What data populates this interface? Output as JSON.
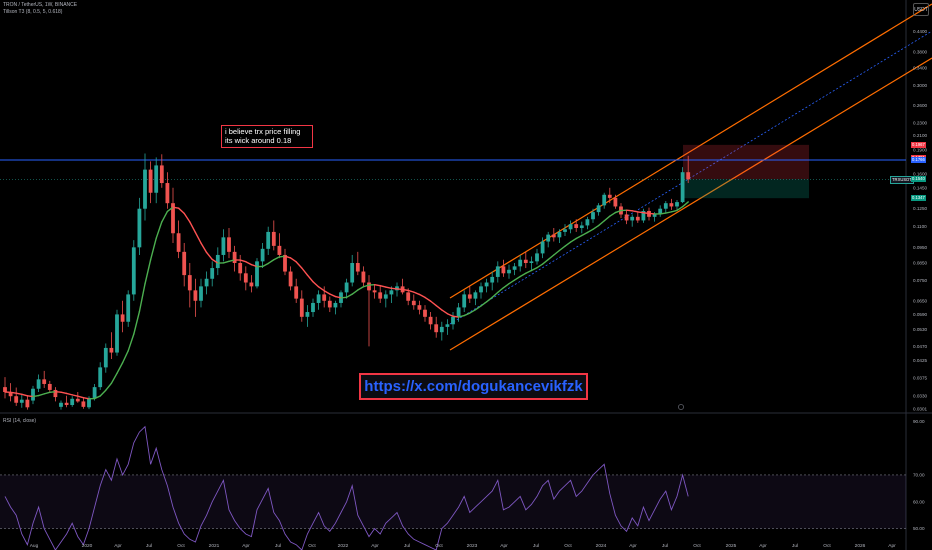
{
  "header": {
    "symbol_line": "TRON / TetherUS, 1W, BINANCE",
    "indicator_line": "Tillson T3 (8, 0.5, 5, 0.618)"
  },
  "currency_button": "USDT",
  "rsi_header": "RSI (14, close)",
  "annotation": {
    "line1": "i believe trx price filling",
    "line2": "its wick around 0.18"
  },
  "link_text": "https://x.com/dogukancevikfzk",
  "symbol_badge": "TRXUSDT",
  "price_badges": [
    {
      "label": "0.1967",
      "color": "#f23645",
      "price": 0.1967
    },
    {
      "label": "0.1791",
      "color": "#f23645",
      "price": 0.1791
    },
    {
      "label": "0.1766",
      "color": "#2962ff",
      "price": 0.1766
    },
    {
      "label": "0.1540",
      "color": "#089981",
      "price": 0.154
    },
    {
      "label": "0.1347",
      "color": "#089981",
      "price": 0.1347
    }
  ],
  "colors": {
    "up": "#26a69a",
    "down": "#ef5350",
    "channel": "#ff6d00",
    "midline": "#2962ff",
    "hline": "#2962ff",
    "rsi": "#7e57c2",
    "t3_up": "#4caf50",
    "t3_down": "#ff5252"
  },
  "chart_data": [
    {
      "type": "candlestick",
      "title": "TRON / TetherUS, 1W, BINANCE",
      "y_scale": "log",
      "y_ticks": [
        0.44,
        0.38,
        0.34,
        0.3,
        0.26,
        0.23,
        0.21,
        0.19,
        0.16,
        0.145,
        0.125,
        0.11,
        0.095,
        0.085,
        0.075,
        0.065,
        0.059,
        0.053,
        0.047,
        0.0425,
        0.0375,
        0.033,
        0.0301
      ],
      "x_ticks": [
        "Aug",
        "2020",
        "Apr",
        "Jul",
        "Oct",
        "2021",
        "Apr",
        "Jul",
        "Oct",
        "2022",
        "Apr",
        "Jul",
        "Oct",
        "2023",
        "Apr",
        "Jul",
        "Oct",
        "2024",
        "Apr",
        "Jul",
        "Oct",
        "2025",
        "Apr",
        "Jul",
        "Oct",
        "2026",
        "Apr"
      ],
      "series": [
        {
          "ohlc": [
            [
              0.0352,
              0.0378,
              0.0325,
              0.034
            ],
            [
              0.034,
              0.0362,
              0.0318,
              0.033
            ],
            [
              0.033,
              0.0351,
              0.0308,
              0.0315
            ],
            [
              0.0315,
              0.0336,
              0.0304,
              0.0322
            ],
            [
              0.0322,
              0.033,
              0.03,
              0.0305
            ],
            [
              0.032,
              0.0355,
              0.0312,
              0.0348
            ],
            [
              0.0348,
              0.0385,
              0.034,
              0.0372
            ],
            [
              0.0372,
              0.0395,
              0.035,
              0.036
            ],
            [
              0.036,
              0.0368,
              0.0338,
              0.0345
            ],
            [
              0.0345,
              0.0352,
              0.0318,
              0.0328
            ],
            [
              0.0306,
              0.032,
              0.03,
              0.0315
            ],
            [
              0.0315,
              0.0331,
              0.0305,
              0.031
            ],
            [
              0.031,
              0.033,
              0.0306,
              0.0324
            ],
            [
              0.0324,
              0.034,
              0.0315,
              0.0318
            ],
            [
              0.0318,
              0.0325,
              0.0302,
              0.0306
            ],
            [
              0.0305,
              0.033,
              0.0301,
              0.0326
            ],
            [
              0.0326,
              0.036,
              0.032,
              0.0352
            ],
            [
              0.0352,
              0.042,
              0.0345,
              0.0405
            ],
            [
              0.0405,
              0.048,
              0.039,
              0.0465
            ],
            [
              0.0465,
              0.052,
              0.043,
              0.045
            ],
            [
              0.045,
              0.061,
              0.044,
              0.059
            ],
            [
              0.059,
              0.065,
              0.052,
              0.056
            ],
            [
              0.056,
              0.07,
              0.054,
              0.068
            ],
            [
              0.068,
              0.1,
              0.065,
              0.095
            ],
            [
              0.095,
              0.135,
              0.09,
              0.125
            ],
            [
              0.125,
              0.185,
              0.115,
              0.165
            ],
            [
              0.165,
              0.175,
              0.13,
              0.14
            ],
            [
              0.14,
              0.18,
              0.13,
              0.17
            ],
            [
              0.17,
              0.184,
              0.145,
              0.15
            ],
            [
              0.15,
              0.162,
              0.125,
              0.13
            ],
            [
              0.13,
              0.145,
              0.098,
              0.105
            ],
            [
              0.105,
              0.115,
              0.088,
              0.092
            ],
            [
              0.092,
              0.098,
              0.072,
              0.078
            ],
            [
              0.078,
              0.085,
              0.062,
              0.07
            ],
            [
              0.07,
              0.076,
              0.058,
              0.065
            ],
            [
              0.065,
              0.076,
              0.062,
              0.072
            ],
            [
              0.072,
              0.08,
              0.068,
              0.076
            ],
            [
              0.076,
              0.086,
              0.072,
              0.082
            ],
            [
              0.082,
              0.095,
              0.078,
              0.09
            ],
            [
              0.09,
              0.108,
              0.086,
              0.102
            ],
            [
              0.102,
              0.109,
              0.088,
              0.092
            ],
            [
              0.092,
              0.096,
              0.08,
              0.085
            ],
            [
              0.085,
              0.09,
              0.075,
              0.079
            ],
            [
              0.079,
              0.083,
              0.07,
              0.074
            ],
            [
              0.074,
              0.078,
              0.069,
              0.072
            ],
            [
              0.072,
              0.088,
              0.071,
              0.086
            ],
            [
              0.086,
              0.098,
              0.082,
              0.094
            ],
            [
              0.094,
              0.11,
              0.09,
              0.106
            ],
            [
              0.106,
              0.115,
              0.093,
              0.096
            ],
            [
              0.096,
              0.105,
              0.088,
              0.09
            ],
            [
              0.09,
              0.094,
              0.078,
              0.08
            ],
            [
              0.08,
              0.083,
              0.07,
              0.072
            ],
            [
              0.072,
              0.076,
              0.064,
              0.066
            ],
            [
              0.066,
              0.07,
              0.056,
              0.058
            ],
            [
              0.058,
              0.063,
              0.054,
              0.06
            ],
            [
              0.06,
              0.066,
              0.058,
              0.064
            ],
            [
              0.064,
              0.07,
              0.061,
              0.068
            ],
            [
              0.068,
              0.072,
              0.062,
              0.065
            ],
            [
              0.065,
              0.067,
              0.06,
              0.062
            ],
            [
              0.062,
              0.065,
              0.059,
              0.064
            ],
            [
              0.064,
              0.07,
              0.062,
              0.069
            ],
            [
              0.069,
              0.076,
              0.066,
              0.074
            ],
            [
              0.074,
              0.09,
              0.072,
              0.085
            ],
            [
              0.085,
              0.092,
              0.078,
              0.08
            ],
            [
              0.08,
              0.083,
              0.072,
              0.074
            ],
            [
              0.074,
              0.078,
              0.047,
              0.07
            ],
            [
              0.07,
              0.073,
              0.066,
              0.069
            ],
            [
              0.069,
              0.072,
              0.064,
              0.066
            ],
            [
              0.066,
              0.07,
              0.062,
              0.068
            ],
            [
              0.068,
              0.072,
              0.064,
              0.07
            ],
            [
              0.07,
              0.074,
              0.067,
              0.072
            ],
            [
              0.072,
              0.076,
              0.068,
              0.069
            ],
            [
              0.069,
              0.071,
              0.063,
              0.065
            ],
            [
              0.065,
              0.068,
              0.061,
              0.063
            ],
            [
              0.063,
              0.065,
              0.059,
              0.061
            ],
            [
              0.061,
              0.063,
              0.056,
              0.058
            ],
            [
              0.058,
              0.06,
              0.053,
              0.055
            ],
            [
              0.055,
              0.058,
              0.05,
              0.052
            ],
            [
              0.052,
              0.056,
              0.049,
              0.054
            ],
            [
              0.054,
              0.057,
              0.051,
              0.055
            ],
            [
              0.055,
              0.06,
              0.053,
              0.058
            ],
            [
              0.058,
              0.064,
              0.056,
              0.062
            ],
            [
              0.062,
              0.07,
              0.06,
              0.068
            ],
            [
              0.068,
              0.072,
              0.064,
              0.066
            ],
            [
              0.066,
              0.07,
              0.063,
              0.069
            ],
            [
              0.069,
              0.074,
              0.066,
              0.072
            ],
            [
              0.072,
              0.076,
              0.069,
              0.074
            ],
            [
              0.074,
              0.08,
              0.07,
              0.077
            ],
            [
              0.077,
              0.086,
              0.074,
              0.083
            ],
            [
              0.083,
              0.087,
              0.077,
              0.079
            ],
            [
              0.079,
              0.084,
              0.076,
              0.081
            ],
            [
              0.081,
              0.085,
              0.078,
              0.083
            ],
            [
              0.083,
              0.09,
              0.08,
              0.087
            ],
            [
              0.087,
              0.092,
              0.082,
              0.085
            ],
            [
              0.085,
              0.089,
              0.081,
              0.086
            ],
            [
              0.086,
              0.094,
              0.084,
              0.091
            ],
            [
              0.091,
              0.102,
              0.088,
              0.099
            ],
            [
              0.099,
              0.106,
              0.095,
              0.104
            ],
            [
              0.104,
              0.109,
              0.099,
              0.102
            ],
            [
              0.102,
              0.108,
              0.098,
              0.106
            ],
            [
              0.106,
              0.112,
              0.103,
              0.108
            ],
            [
              0.108,
              0.115,
              0.105,
              0.112
            ],
            [
              0.112,
              0.116,
              0.106,
              0.109
            ],
            [
              0.109,
              0.114,
              0.105,
              0.111
            ],
            [
              0.111,
              0.118,
              0.108,
              0.116
            ],
            [
              0.116,
              0.125,
              0.113,
              0.122
            ],
            [
              0.122,
              0.13,
              0.119,
              0.128
            ],
            [
              0.128,
              0.14,
              0.125,
              0.138
            ],
            [
              0.138,
              0.145,
              0.13,
              0.135
            ],
            [
              0.135,
              0.138,
              0.125,
              0.127
            ],
            [
              0.127,
              0.13,
              0.117,
              0.12
            ],
            [
              0.12,
              0.123,
              0.112,
              0.115
            ],
            [
              0.115,
              0.12,
              0.11,
              0.118
            ],
            [
              0.118,
              0.122,
              0.113,
              0.115
            ],
            [
              0.115,
              0.125,
              0.113,
              0.123
            ],
            [
              0.123,
              0.126,
              0.115,
              0.118
            ],
            [
              0.118,
              0.122,
              0.114,
              0.12
            ],
            [
              0.12,
              0.128,
              0.118,
              0.125
            ],
            [
              0.125,
              0.132,
              0.121,
              0.13
            ],
            [
              0.13,
              0.134,
              0.124,
              0.127
            ],
            [
              0.127,
              0.133,
              0.123,
              0.131
            ],
            [
              0.131,
              0.168,
              0.13,
              0.162
            ],
            [
              0.162,
              0.182,
              0.15,
              0.154
            ]
          ]
        }
      ]
    },
    {
      "type": "line",
      "title": "RSI (14, close)",
      "ylim": [
        45,
        90
      ],
      "y_ticks": [
        90.0,
        70.0,
        60.0,
        50.0
      ],
      "series": [
        {
          "name": "RSI",
          "values": [
            62,
            58,
            55,
            48,
            44,
            52,
            58,
            50,
            46,
            42,
            45,
            48,
            52,
            47,
            44,
            50,
            58,
            66,
            72,
            68,
            76,
            70,
            74,
            82,
            86,
            88,
            74,
            80,
            72,
            66,
            58,
            52,
            48,
            46,
            45,
            51,
            55,
            60,
            64,
            68,
            57,
            53,
            50,
            48,
            47,
            57,
            61,
            65,
            56,
            53,
            48,
            45,
            44,
            42,
            48,
            52,
            56,
            51,
            49,
            52,
            56,
            60,
            66,
            55,
            51,
            47,
            50,
            48,
            52,
            54,
            56,
            51,
            48,
            46,
            45,
            44,
            43,
            42,
            50,
            52,
            55,
            58,
            62,
            56,
            58,
            60,
            62,
            64,
            68,
            57,
            58,
            60,
            62,
            57,
            59,
            62,
            66,
            68,
            61,
            64,
            66,
            68,
            62,
            64,
            67,
            70,
            72,
            74,
            63,
            55,
            51,
            49,
            54,
            51,
            58,
            53,
            57,
            61,
            64,
            57,
            62,
            70,
            62
          ]
        }
      ]
    }
  ]
}
